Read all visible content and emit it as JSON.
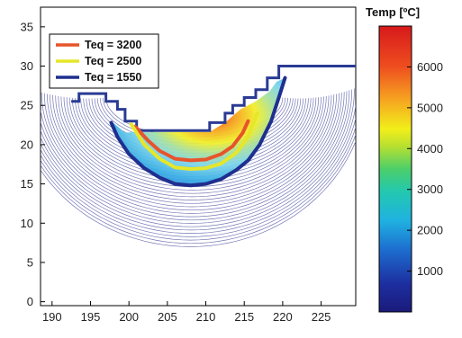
{
  "chart_data": {
    "type": "contour",
    "title": "",
    "xlabel": "",
    "ylabel": "",
    "xlim": [
      188.5,
      229.5
    ],
    "ylim": [
      -0.5,
      37.5
    ],
    "x_ticks": [
      "190",
      "195",
      "200",
      "205",
      "210",
      "215",
      "220",
      "225"
    ],
    "x_tick_values": [
      190,
      195,
      200,
      205,
      210,
      215,
      220,
      225
    ],
    "y_ticks": [
      "0",
      "5",
      "10",
      "15",
      "20",
      "25",
      "30",
      "35"
    ],
    "y_tick_values": [
      0,
      5,
      10,
      15,
      20,
      25,
      30,
      35
    ],
    "legend": {
      "placement": "top-left",
      "entries": [
        {
          "label": "Teq = 3200",
          "color": "#e8542a"
        },
        {
          "label": "Teq = 2500",
          "color": "#e6e62a"
        },
        {
          "label": "Teq = 1550",
          "color": "#1f2f8f"
        }
      ]
    },
    "series": [
      {
        "name": "Teq = 3200",
        "color": "#e8542a",
        "x": [
          200.8,
          202.5,
          204,
          206,
          208,
          210,
          212,
          213.5,
          214.8,
          215.5
        ],
        "y": [
          22.3,
          20.5,
          19.2,
          18.2,
          18.0,
          18.1,
          18.8,
          19.8,
          21.5,
          23.0
        ]
      },
      {
        "name": "Teq = 2500",
        "color": "#e6e62a",
        "x": [
          200.3,
          202,
          204,
          206,
          208,
          210,
          212,
          214,
          215.5,
          216.7
        ],
        "y": [
          22.6,
          20.0,
          18.2,
          17.1,
          16.9,
          17.0,
          17.6,
          19.0,
          21.0,
          24.0
        ]
      },
      {
        "name": "Teq = 1550",
        "color": "#1f2f8f",
        "x": [
          197.7,
          198.5,
          200,
          202,
          204,
          206,
          208,
          210,
          212,
          214,
          215.5,
          217,
          218.5,
          219.5,
          220.3
        ],
        "y": [
          22.8,
          21.0,
          18.8,
          17.0,
          15.8,
          15.0,
          14.8,
          15.0,
          15.6,
          16.8,
          18.0,
          20.0,
          23.0,
          26.0,
          28.5
        ]
      }
    ],
    "colorbar": {
      "title": "Temp [ºC]",
      "min": 0,
      "max": 7000,
      "ticks": [
        "1000",
        "2000",
        "3000",
        "4000",
        "5000",
        "6000"
      ],
      "tick_values": [
        1000,
        2000,
        3000,
        4000,
        5000,
        6000
      ],
      "colormap": "jet"
    },
    "grid": false
  }
}
